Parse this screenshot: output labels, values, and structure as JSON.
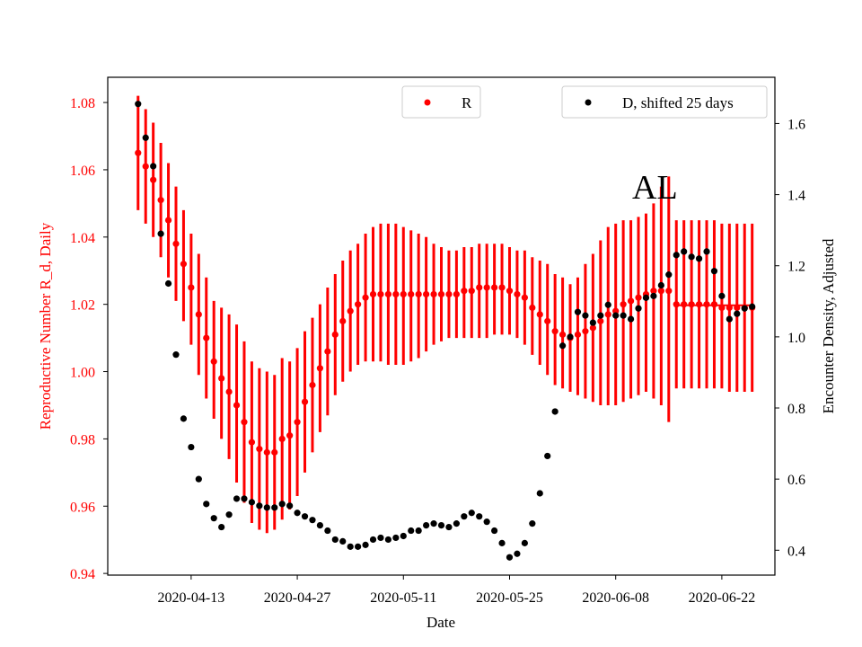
{
  "chart_data": {
    "type": "scatter",
    "xlabel": "Date",
    "ylabel_left": "Reproductive Number R_d, Daily",
    "ylabel_right": "Encounter Density, Adjusted",
    "annotation": "AL",
    "xlim": [
      "2020-04-02",
      "2020-06-29"
    ],
    "ylim_left": [
      0.9395,
      1.0875
    ],
    "ylim_right": [
      0.33,
      1.73
    ],
    "x_ticks": [
      "2020-04-13",
      "2020-04-27",
      "2020-05-11",
      "2020-05-25",
      "2020-06-08",
      "2020-06-22"
    ],
    "y_ticks_left": [
      "0.94",
      "0.96",
      "0.98",
      "1.00",
      "1.02",
      "1.04",
      "1.06",
      "1.08"
    ],
    "y_ticks_right": [
      "0.4",
      "0.6",
      "0.8",
      "1.0",
      "1.2",
      "1.4",
      "1.6"
    ],
    "legend_placement": "top",
    "colors": {
      "R": "#ff0000",
      "D": "#000000",
      "left_axis": "#ff0000",
      "right_axis": "#000000"
    },
    "series": [
      {
        "name": "R",
        "axis": "left",
        "x": [
          "2020-04-06",
          "2020-04-07",
          "2020-04-08",
          "2020-04-09",
          "2020-04-10",
          "2020-04-11",
          "2020-04-12",
          "2020-04-13",
          "2020-04-14",
          "2020-04-15",
          "2020-04-16",
          "2020-04-17",
          "2020-04-18",
          "2020-04-19",
          "2020-04-20",
          "2020-04-21",
          "2020-04-22",
          "2020-04-23",
          "2020-04-24",
          "2020-04-25",
          "2020-04-26",
          "2020-04-27",
          "2020-04-28",
          "2020-04-29",
          "2020-04-30",
          "2020-05-01",
          "2020-05-02",
          "2020-05-03",
          "2020-05-04",
          "2020-05-05",
          "2020-05-06",
          "2020-05-07",
          "2020-05-08",
          "2020-05-09",
          "2020-05-10",
          "2020-05-11",
          "2020-05-12",
          "2020-05-13",
          "2020-05-14",
          "2020-05-15",
          "2020-05-16",
          "2020-05-17",
          "2020-05-18",
          "2020-05-19",
          "2020-05-20",
          "2020-05-21",
          "2020-05-22",
          "2020-05-23",
          "2020-05-24",
          "2020-05-25",
          "2020-05-26",
          "2020-05-27",
          "2020-05-28",
          "2020-05-29",
          "2020-05-30",
          "2020-05-31",
          "2020-06-01",
          "2020-06-02",
          "2020-06-03",
          "2020-06-04",
          "2020-06-05",
          "2020-06-06",
          "2020-06-07",
          "2020-06-08",
          "2020-06-09",
          "2020-06-10",
          "2020-06-11",
          "2020-06-12",
          "2020-06-13",
          "2020-06-14",
          "2020-06-15",
          "2020-06-16",
          "2020-06-17",
          "2020-06-18",
          "2020-06-19",
          "2020-06-20",
          "2020-06-21",
          "2020-06-22",
          "2020-06-23",
          "2020-06-24",
          "2020-06-25",
          "2020-06-26"
        ],
        "y": [
          1.065,
          1.061,
          1.057,
          1.051,
          1.045,
          1.038,
          1.032,
          1.025,
          1.017,
          1.01,
          1.003,
          0.998,
          0.994,
          0.99,
          0.985,
          0.979,
          0.977,
          0.976,
          0.976,
          0.98,
          0.981,
          0.985,
          0.991,
          0.996,
          1.001,
          1.006,
          1.011,
          1.015,
          1.018,
          1.02,
          1.022,
          1.023,
          1.023,
          1.023,
          1.023,
          1.023,
          1.023,
          1.023,
          1.023,
          1.023,
          1.023,
          1.023,
          1.023,
          1.024,
          1.024,
          1.025,
          1.025,
          1.025,
          1.025,
          1.024,
          1.023,
          1.022,
          1.019,
          1.017,
          1.015,
          1.012,
          1.011,
          1.01,
          1.011,
          1.012,
          1.013,
          1.015,
          1.017,
          1.018,
          1.02,
          1.021,
          1.022,
          1.023,
          1.024,
          1.024,
          1.024,
          1.02,
          1.02,
          1.02,
          1.02,
          1.02,
          1.02,
          1.019,
          1.019,
          1.019,
          1.019,
          1.019
        ],
        "y_lower": [
          1.048,
          1.044,
          1.04,
          1.034,
          1.028,
          1.021,
          1.015,
          1.008,
          0.999,
          0.992,
          0.986,
          0.98,
          0.974,
          0.967,
          0.961,
          0.955,
          0.953,
          0.952,
          0.953,
          0.956,
          0.959,
          0.963,
          0.97,
          0.976,
          0.982,
          0.987,
          0.993,
          0.997,
          1.0,
          1.002,
          1.003,
          1.003,
          1.003,
          1.002,
          1.002,
          1.002,
          1.003,
          1.004,
          1.006,
          1.008,
          1.009,
          1.01,
          1.01,
          1.01,
          1.01,
          1.01,
          1.01,
          1.011,
          1.011,
          1.011,
          1.01,
          1.008,
          1.005,
          1.002,
          0.999,
          0.996,
          0.995,
          0.994,
          0.993,
          0.992,
          0.991,
          0.99,
          0.99,
          0.99,
          0.991,
          0.992,
          0.993,
          0.994,
          0.992,
          0.99,
          0.985,
          0.995,
          0.995,
          0.995,
          0.995,
          0.995,
          0.995,
          0.995,
          0.994,
          0.994,
          0.994,
          0.994
        ],
        "y_upper": [
          1.082,
          1.078,
          1.074,
          1.068,
          1.062,
          1.055,
          1.048,
          1.041,
          1.035,
          1.028,
          1.021,
          1.019,
          1.017,
          1.014,
          1.009,
          1.003,
          1.001,
          1.0,
          0.999,
          1.004,
          1.003,
          1.007,
          1.012,
          1.016,
          1.02,
          1.025,
          1.029,
          1.033,
          1.036,
          1.038,
          1.041,
          1.043,
          1.044,
          1.044,
          1.044,
          1.043,
          1.042,
          1.041,
          1.04,
          1.038,
          1.037,
          1.036,
          1.036,
          1.037,
          1.037,
          1.038,
          1.038,
          1.038,
          1.038,
          1.037,
          1.036,
          1.036,
          1.034,
          1.033,
          1.032,
          1.029,
          1.028,
          1.026,
          1.028,
          1.032,
          1.035,
          1.039,
          1.043,
          1.044,
          1.045,
          1.045,
          1.046,
          1.047,
          1.05,
          1.055,
          1.058,
          1.045,
          1.045,
          1.045,
          1.045,
          1.045,
          1.045,
          1.044,
          1.044,
          1.044,
          1.044,
          1.044
        ],
        "horizontal_segment": {
          "x": [
            "2020-06-16",
            "2020-06-26"
          ],
          "y": 1.0197
        }
      },
      {
        "name": "D, shifted 25 days",
        "axis": "right",
        "x": [
          "2020-04-06",
          "2020-04-07",
          "2020-04-08",
          "2020-04-09",
          "2020-04-10",
          "2020-04-11",
          "2020-04-12",
          "2020-04-13",
          "2020-04-14",
          "2020-04-15",
          "2020-04-16",
          "2020-04-17",
          "2020-04-18",
          "2020-04-19",
          "2020-04-20",
          "2020-04-21",
          "2020-04-22",
          "2020-04-23",
          "2020-04-24",
          "2020-04-25",
          "2020-04-26",
          "2020-04-27",
          "2020-04-28",
          "2020-04-29",
          "2020-04-30",
          "2020-05-01",
          "2020-05-02",
          "2020-05-03",
          "2020-05-04",
          "2020-05-05",
          "2020-05-06",
          "2020-05-07",
          "2020-05-08",
          "2020-05-09",
          "2020-05-10",
          "2020-05-11",
          "2020-05-12",
          "2020-05-13",
          "2020-05-14",
          "2020-05-15",
          "2020-05-16",
          "2020-05-17",
          "2020-05-18",
          "2020-05-19",
          "2020-05-20",
          "2020-05-21",
          "2020-05-22",
          "2020-05-23",
          "2020-05-24",
          "2020-05-25",
          "2020-05-26",
          "2020-05-27",
          "2020-05-28",
          "2020-05-29",
          "2020-05-30",
          "2020-05-31",
          "2020-06-01",
          "2020-06-02",
          "2020-06-03",
          "2020-06-04",
          "2020-06-05",
          "2020-06-06",
          "2020-06-07",
          "2020-06-08",
          "2020-06-09",
          "2020-06-10",
          "2020-06-11",
          "2020-06-12",
          "2020-06-13",
          "2020-06-14",
          "2020-06-15",
          "2020-06-16",
          "2020-06-17",
          "2020-06-18",
          "2020-06-19",
          "2020-06-20",
          "2020-06-21",
          "2020-06-22",
          "2020-06-23",
          "2020-06-24",
          "2020-06-25",
          "2020-06-26"
        ],
        "y": [
          1.655,
          1.56,
          1.48,
          1.29,
          1.15,
          0.95,
          0.77,
          0.69,
          0.6,
          0.53,
          0.49,
          0.465,
          0.5,
          0.545,
          0.545,
          0.535,
          0.525,
          0.52,
          0.52,
          0.53,
          0.525,
          0.505,
          0.495,
          0.485,
          0.47,
          0.455,
          0.43,
          0.425,
          0.41,
          0.41,
          0.415,
          0.43,
          0.435,
          0.43,
          0.435,
          0.44,
          0.455,
          0.455,
          0.47,
          0.475,
          0.47,
          0.465,
          0.475,
          0.495,
          0.505,
          0.495,
          0.48,
          0.455,
          0.42,
          0.38,
          0.39,
          0.42,
          0.475,
          0.56,
          0.665,
          0.79,
          0.975,
          1.0,
          1.07,
          1.06,
          1.04,
          1.06,
          1.09,
          1.06,
          1.06,
          1.05,
          1.08,
          1.11,
          1.115,
          1.145,
          1.175,
          1.23,
          1.24,
          1.225,
          1.22,
          1.24,
          1.185,
          1.115,
          1.05,
          1.065,
          1.08,
          1.085
        ]
      }
    ]
  }
}
